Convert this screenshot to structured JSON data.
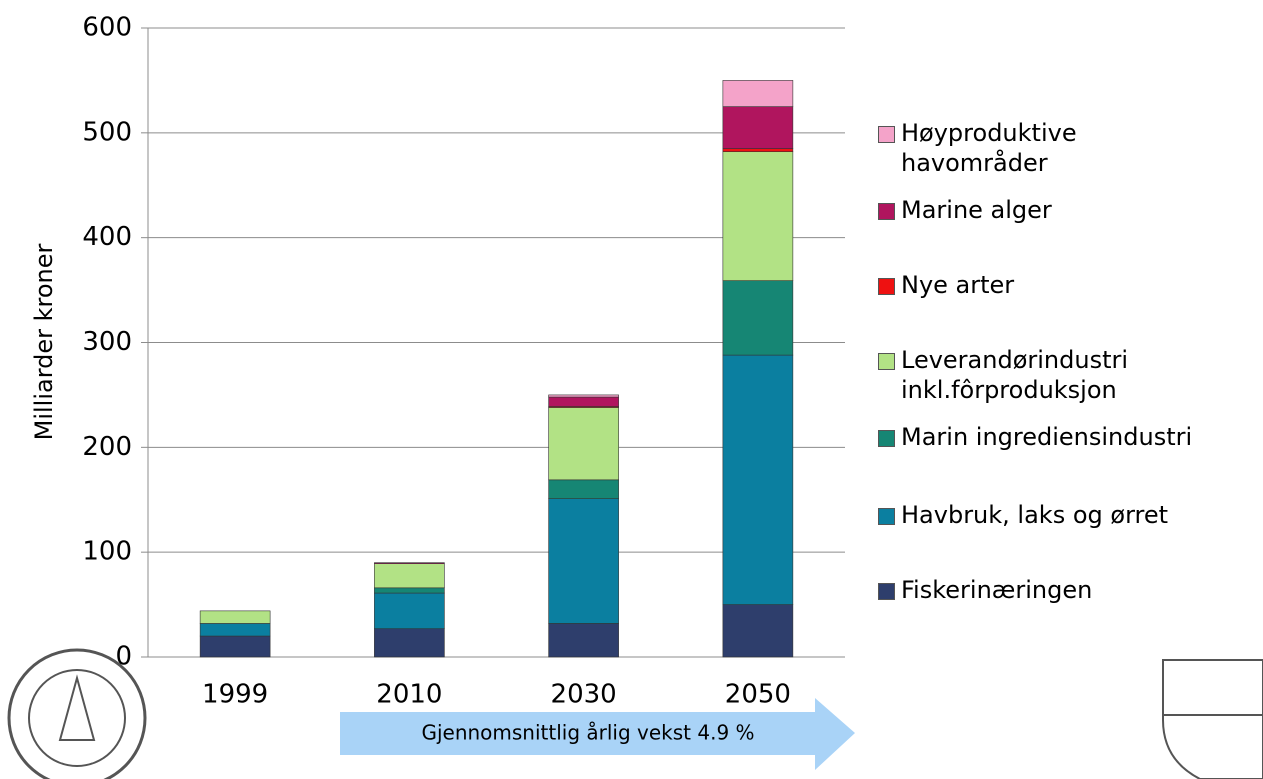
{
  "chart_data": {
    "type": "stacked_bar",
    "y_label": "Milliarder kroner",
    "categories": [
      "1999",
      "2010",
      "2030",
      "2050"
    ],
    "series": [
      {
        "name": "Fiskerinæringen",
        "color": "#2e3e6c",
        "values": [
          20,
          27,
          32,
          50
        ]
      },
      {
        "name": "Havbruk, laks og ørret",
        "color": "#0b7fa0",
        "values": [
          12,
          34,
          119,
          238
        ]
      },
      {
        "name": "Marin ingrediensindustri",
        "color": "#168674",
        "values": [
          0,
          5,
          18,
          71
        ]
      },
      {
        "name": "Leverandørindustri\ninkl.fôrproduksjon",
        "color": "#b2e285",
        "values": [
          12,
          23,
          69,
          123
        ]
      },
      {
        "name": "Nye arter",
        "color": "#ee1111",
        "values": [
          0,
          0,
          1,
          3
        ]
      },
      {
        "name": "Marine alger",
        "color": "#b0155e",
        "values": [
          0,
          1,
          9,
          40
        ]
      },
      {
        "name": "Høyproduktive\nhavområder",
        "color": "#f4a3c9",
        "values": [
          0,
          0,
          2,
          25
        ]
      }
    ],
    "ylim": [
      0,
      600
    ],
    "yticks": [
      0,
      100,
      200,
      300,
      400,
      500,
      600
    ],
    "grid": true,
    "annotation": "Gjennomsnittlig årlig vekst  4.9 %"
  }
}
